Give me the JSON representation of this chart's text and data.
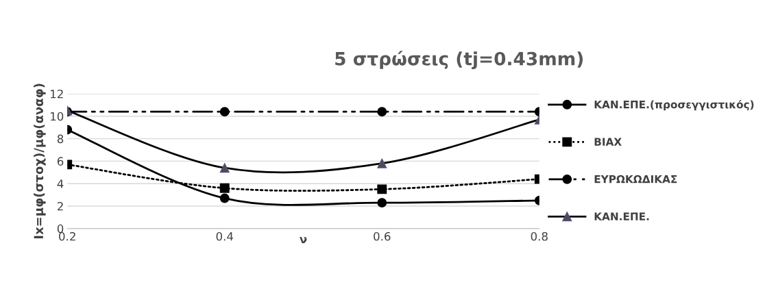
{
  "chart_data": {
    "type": "line",
    "title": "5 στρώσεις (tj=0.43mm)",
    "xlabel": "ν",
    "ylabel": "Ιx=μφ(στοχ)/μφ(αναφ)",
    "x": [
      0.2,
      0.4,
      0.6,
      0.8
    ],
    "xlim": [
      0.2,
      0.8
    ],
    "xticks": [
      0.2,
      0.4,
      0.6,
      0.8
    ],
    "ylim": [
      0,
      12
    ],
    "yticks": [
      0,
      2,
      4,
      6,
      8,
      10,
      12
    ],
    "grid": "y",
    "legend": "right",
    "series": [
      {
        "name": "ΚΑΝ.ΕΠΕ.(προσεγγιστικός)",
        "color": "#000000",
        "values": [
          8.8,
          2.7,
          2.3,
          2.5
        ],
        "marker": "circle",
        "line_style": "solid"
      },
      {
        "name": "ΒΙΑΧ",
        "color": "#000000",
        "values": [
          5.7,
          3.6,
          3.5,
          4.4
        ],
        "marker": "square",
        "line_style": "dotted"
      },
      {
        "name": "ΕΥΡΩΚΩΔΙΚΑΣ",
        "color": "#000000",
        "values": [
          10.4,
          10.4,
          10.4,
          10.4
        ],
        "marker": "circle",
        "line_style": "dashed"
      },
      {
        "name": "ΚΑΝ.ΕΠΕ.",
        "color": "#000000",
        "values": [
          10.5,
          5.4,
          5.8,
          9.7
        ],
        "marker": "triangle",
        "line_style": "solid"
      }
    ]
  }
}
